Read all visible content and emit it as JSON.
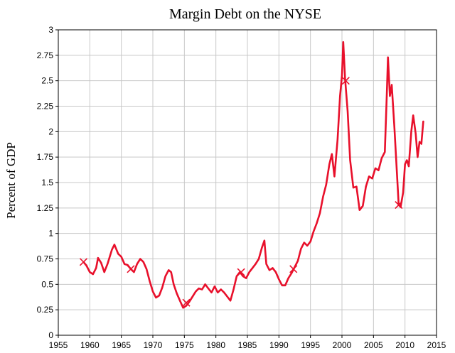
{
  "chart_data": {
    "type": "line",
    "title": "Margin Debt on the NYSE",
    "xlabel": "",
    "ylabel": "Percent of GDP",
    "xlim": [
      1955,
      2015
    ],
    "ylim": [
      0,
      3
    ],
    "grid": true,
    "x_ticks": [
      "1955",
      "1960",
      "1965",
      "1970",
      "1975",
      "1980",
      "1985",
      "1990",
      "1995",
      "2000",
      "2005",
      "2010",
      "2015"
    ],
    "y_ticks": [
      "0",
      "0.25",
      "0.5",
      "0.75",
      "1",
      "1.25",
      "1.5",
      "1.75",
      "2",
      "2.25",
      "2.5",
      "2.75",
      "3"
    ],
    "series_color": "#e8102b",
    "series": [
      {
        "name": "",
        "points": [
          [
            1959.0,
            0.72
          ],
          [
            1959.5,
            0.68
          ],
          [
            1960.0,
            0.62
          ],
          [
            1960.5,
            0.6
          ],
          [
            1961.0,
            0.66
          ],
          [
            1961.3,
            0.76
          ],
          [
            1961.8,
            0.71
          ],
          [
            1962.3,
            0.62
          ],
          [
            1962.8,
            0.7
          ],
          [
            1963.5,
            0.84
          ],
          [
            1963.9,
            0.89
          ],
          [
            1964.5,
            0.8
          ],
          [
            1965.0,
            0.77
          ],
          [
            1965.5,
            0.7
          ],
          [
            1966.0,
            0.69
          ],
          [
            1966.5,
            0.65
          ],
          [
            1967.0,
            0.62
          ],
          [
            1967.5,
            0.7
          ],
          [
            1968.0,
            0.75
          ],
          [
            1968.5,
            0.72
          ],
          [
            1969.0,
            0.65
          ],
          [
            1969.5,
            0.53
          ],
          [
            1970.0,
            0.43
          ],
          [
            1970.5,
            0.37
          ],
          [
            1971.0,
            0.39
          ],
          [
            1971.5,
            0.47
          ],
          [
            1972.0,
            0.58
          ],
          [
            1972.5,
            0.64
          ],
          [
            1972.9,
            0.62
          ],
          [
            1973.3,
            0.5
          ],
          [
            1973.8,
            0.41
          ],
          [
            1974.3,
            0.34
          ],
          [
            1974.8,
            0.27
          ],
          [
            1975.3,
            0.29
          ],
          [
            1975.8,
            0.33
          ],
          [
            1976.3,
            0.38
          ],
          [
            1976.8,
            0.43
          ],
          [
            1977.3,
            0.46
          ],
          [
            1977.8,
            0.45
          ],
          [
            1978.3,
            0.5
          ],
          [
            1978.8,
            0.46
          ],
          [
            1979.3,
            0.42
          ],
          [
            1979.8,
            0.48
          ],
          [
            1980.3,
            0.42
          ],
          [
            1980.8,
            0.45
          ],
          [
            1981.3,
            0.42
          ],
          [
            1981.8,
            0.38
          ],
          [
            1982.3,
            0.34
          ],
          [
            1982.8,
            0.45
          ],
          [
            1983.3,
            0.58
          ],
          [
            1983.8,
            0.62
          ],
          [
            1984.3,
            0.58
          ],
          [
            1984.8,
            0.56
          ],
          [
            1985.3,
            0.62
          ],
          [
            1985.8,
            0.66
          ],
          [
            1986.3,
            0.7
          ],
          [
            1986.8,
            0.75
          ],
          [
            1987.3,
            0.86
          ],
          [
            1987.7,
            0.93
          ],
          [
            1988.0,
            0.7
          ],
          [
            1988.5,
            0.64
          ],
          [
            1989.0,
            0.66
          ],
          [
            1989.5,
            0.62
          ],
          [
            1990.0,
            0.55
          ],
          [
            1990.5,
            0.49
          ],
          [
            1991.0,
            0.49
          ],
          [
            1991.5,
            0.56
          ],
          [
            1992.0,
            0.61
          ],
          [
            1992.5,
            0.67
          ],
          [
            1993.0,
            0.73
          ],
          [
            1993.5,
            0.85
          ],
          [
            1994.0,
            0.91
          ],
          [
            1994.5,
            0.88
          ],
          [
            1995.0,
            0.92
          ],
          [
            1995.5,
            1.02
          ],
          [
            1996.0,
            1.1
          ],
          [
            1996.5,
            1.2
          ],
          [
            1997.0,
            1.36
          ],
          [
            1997.5,
            1.48
          ],
          [
            1998.0,
            1.68
          ],
          [
            1998.4,
            1.78
          ],
          [
            1998.8,
            1.56
          ],
          [
            1999.3,
            1.92
          ],
          [
            1999.7,
            2.35
          ],
          [
            2000.0,
            2.55
          ],
          [
            2000.2,
            2.88
          ],
          [
            2000.5,
            2.52
          ],
          [
            2000.9,
            2.2
          ],
          [
            2001.3,
            1.72
          ],
          [
            2001.8,
            1.45
          ],
          [
            2002.3,
            1.46
          ],
          [
            2002.8,
            1.23
          ],
          [
            2003.3,
            1.27
          ],
          [
            2003.8,
            1.46
          ],
          [
            2004.3,
            1.56
          ],
          [
            2004.8,
            1.54
          ],
          [
            2005.3,
            1.64
          ],
          [
            2005.8,
            1.62
          ],
          [
            2006.3,
            1.74
          ],
          [
            2006.8,
            1.8
          ],
          [
            2007.1,
            2.35
          ],
          [
            2007.3,
            2.73
          ],
          [
            2007.6,
            2.35
          ],
          [
            2007.9,
            2.46
          ],
          [
            2008.3,
            2.06
          ],
          [
            2008.7,
            1.62
          ],
          [
            2009.0,
            1.28
          ],
          [
            2009.3,
            1.26
          ],
          [
            2009.7,
            1.4
          ],
          [
            2010.0,
            1.68
          ],
          [
            2010.3,
            1.72
          ],
          [
            2010.6,
            1.66
          ],
          [
            2011.0,
            2.0
          ],
          [
            2011.3,
            2.16
          ],
          [
            2011.7,
            1.98
          ],
          [
            2012.0,
            1.75
          ],
          [
            2012.3,
            1.9
          ],
          [
            2012.6,
            1.88
          ],
          [
            2012.9,
            2.1
          ]
        ],
        "markers": [
          [
            1959.0,
            0.72
          ],
          [
            1966.5,
            0.65
          ],
          [
            1975.3,
            0.32
          ],
          [
            1984.0,
            0.62
          ],
          [
            1992.3,
            0.65
          ],
          [
            2000.6,
            2.5
          ],
          [
            2009.0,
            1.28
          ]
        ]
      }
    ]
  }
}
